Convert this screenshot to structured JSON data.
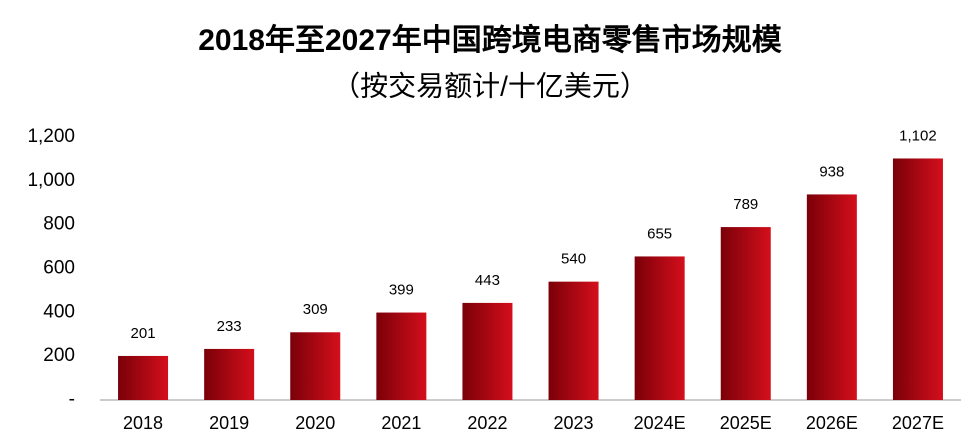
{
  "chart_data": {
    "type": "bar",
    "title": "2018年至2027年中国跨境电商零售市场规模",
    "subtitle": "（按交易额计/十亿美元）",
    "categories": [
      "2018",
      "2019",
      "2020",
      "2021",
      "2022",
      "2023",
      "2024E",
      "2025E",
      "2026E",
      "2027E"
    ],
    "values": [
      201,
      233,
      309,
      399,
      443,
      540,
      655,
      789,
      938,
      1102
    ],
    "value_labels": [
      "201",
      "233",
      "309",
      "399",
      "443",
      "540",
      "655",
      "789",
      "938",
      "1,102"
    ],
    "color": "#d40f1c",
    "ylim": [
      0,
      1200
    ],
    "yticks": [
      {
        "value": 0,
        "label": "-"
      },
      200,
      400,
      600,
      800,
      {
        "value": 1000,
        "label": "1,000"
      },
      {
        "value": 1200,
        "label": "1,200"
      }
    ],
    "grid": false
  }
}
